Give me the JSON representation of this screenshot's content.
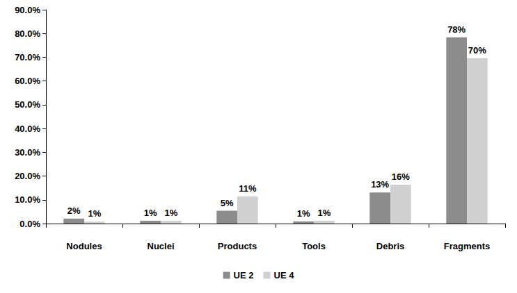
{
  "chart_data": {
    "type": "bar",
    "categories": [
      "Nodules",
      "Nuclei",
      "Products",
      "Tools",
      "Debris",
      "Fragments"
    ],
    "series": [
      {
        "name": "UE 2",
        "color": "#8c8c8c",
        "values": [
          2.1,
          1.2,
          5.4,
          0.9,
          13.1,
          78.4
        ],
        "value_labels": [
          "2%",
          "1%",
          "5%",
          "1%",
          "13%",
          "78%"
        ]
      },
      {
        "name": "UE 4",
        "color": "#d0d0d0",
        "values": [
          0.8,
          1.2,
          11.4,
          1.2,
          16.4,
          69.6
        ],
        "value_labels": [
          "1%",
          "1%",
          "11%",
          "1%",
          "16%",
          "70%"
        ]
      }
    ],
    "ylim": [
      0,
      90
    ],
    "yticks": [
      {
        "value": 0,
        "label": "0.0%"
      },
      {
        "value": 10,
        "label": "10.0%"
      },
      {
        "value": 20,
        "label": "20.0%"
      },
      {
        "value": 30,
        "label": "30.0%"
      },
      {
        "value": 40,
        "label": "40.0%"
      },
      {
        "value": 50,
        "label": "50.0%"
      },
      {
        "value": 60,
        "label": "60.0%"
      },
      {
        "value": 70,
        "label": "70.0%"
      },
      {
        "value": 80,
        "label": "80.0%"
      },
      {
        "value": 90,
        "label": "90.0%"
      }
    ],
    "grid": false,
    "legend": "bottom",
    "data_labels": true
  }
}
